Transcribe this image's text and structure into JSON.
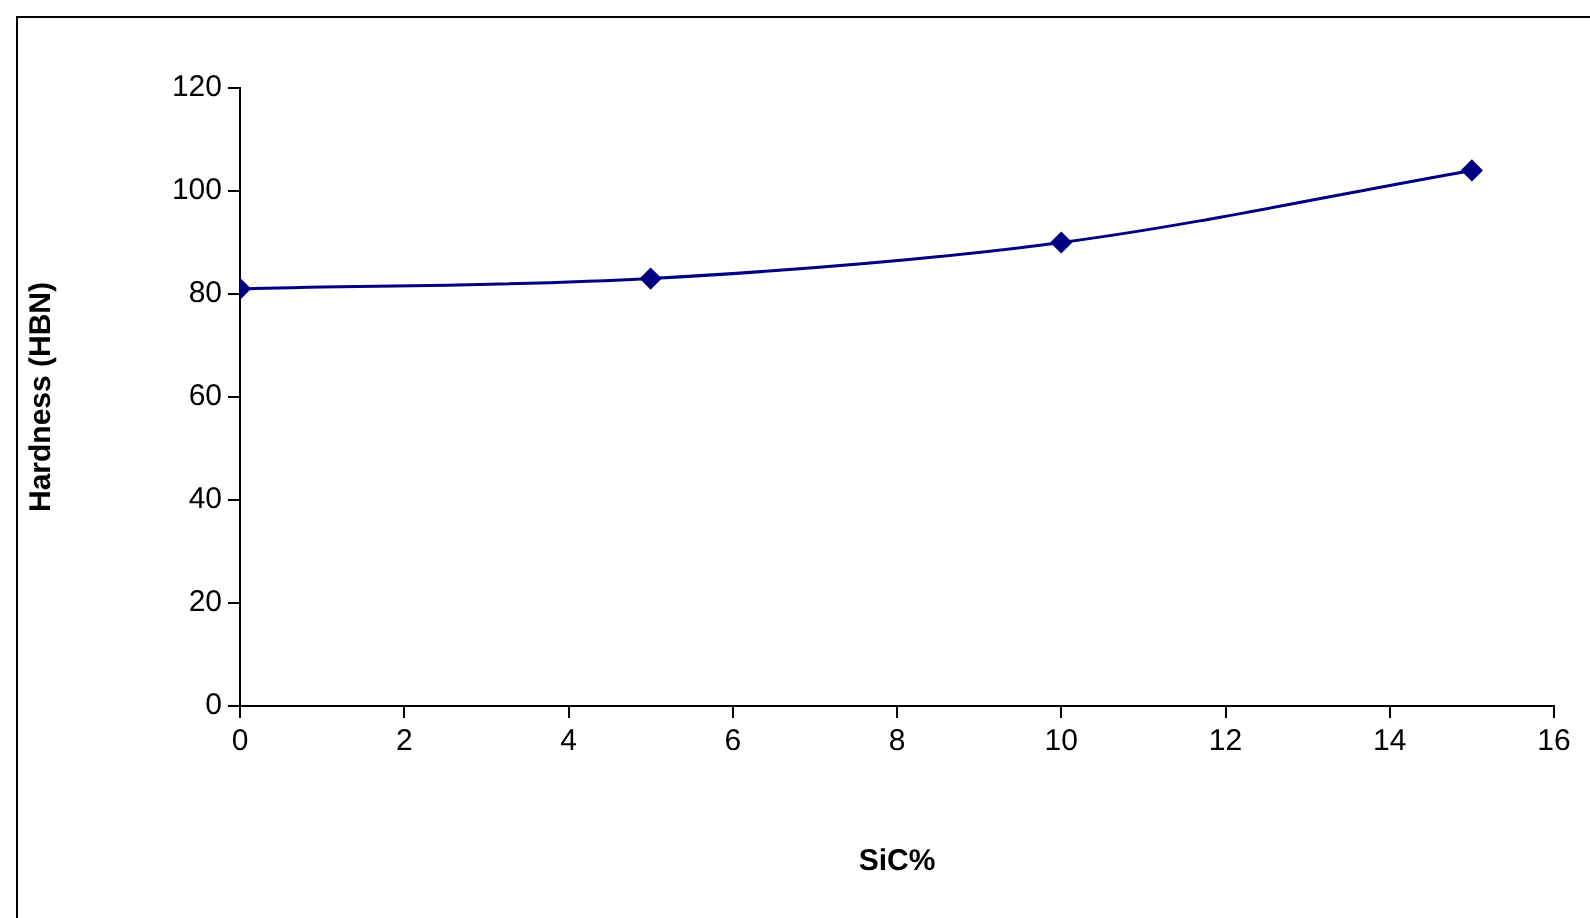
{
  "chart_data": {
    "type": "line",
    "xlabel": "SiC%",
    "ylabel": "Hardness (HBN)",
    "x": [
      0,
      5,
      10,
      15
    ],
    "series": [
      {
        "color": "#000080",
        "values": [
          81,
          83,
          90,
          104
        ]
      }
    ],
    "xlim": [
      0,
      16
    ],
    "xticks": [
      0,
      2,
      4,
      6,
      8,
      10,
      12,
      14,
      16
    ],
    "ylim": [
      0,
      120
    ],
    "yticks": [
      0,
      20,
      40,
      60,
      80,
      100,
      120
    ],
    "grid": false,
    "legend": false,
    "marker": "diamond",
    "line_style": "solid"
  }
}
